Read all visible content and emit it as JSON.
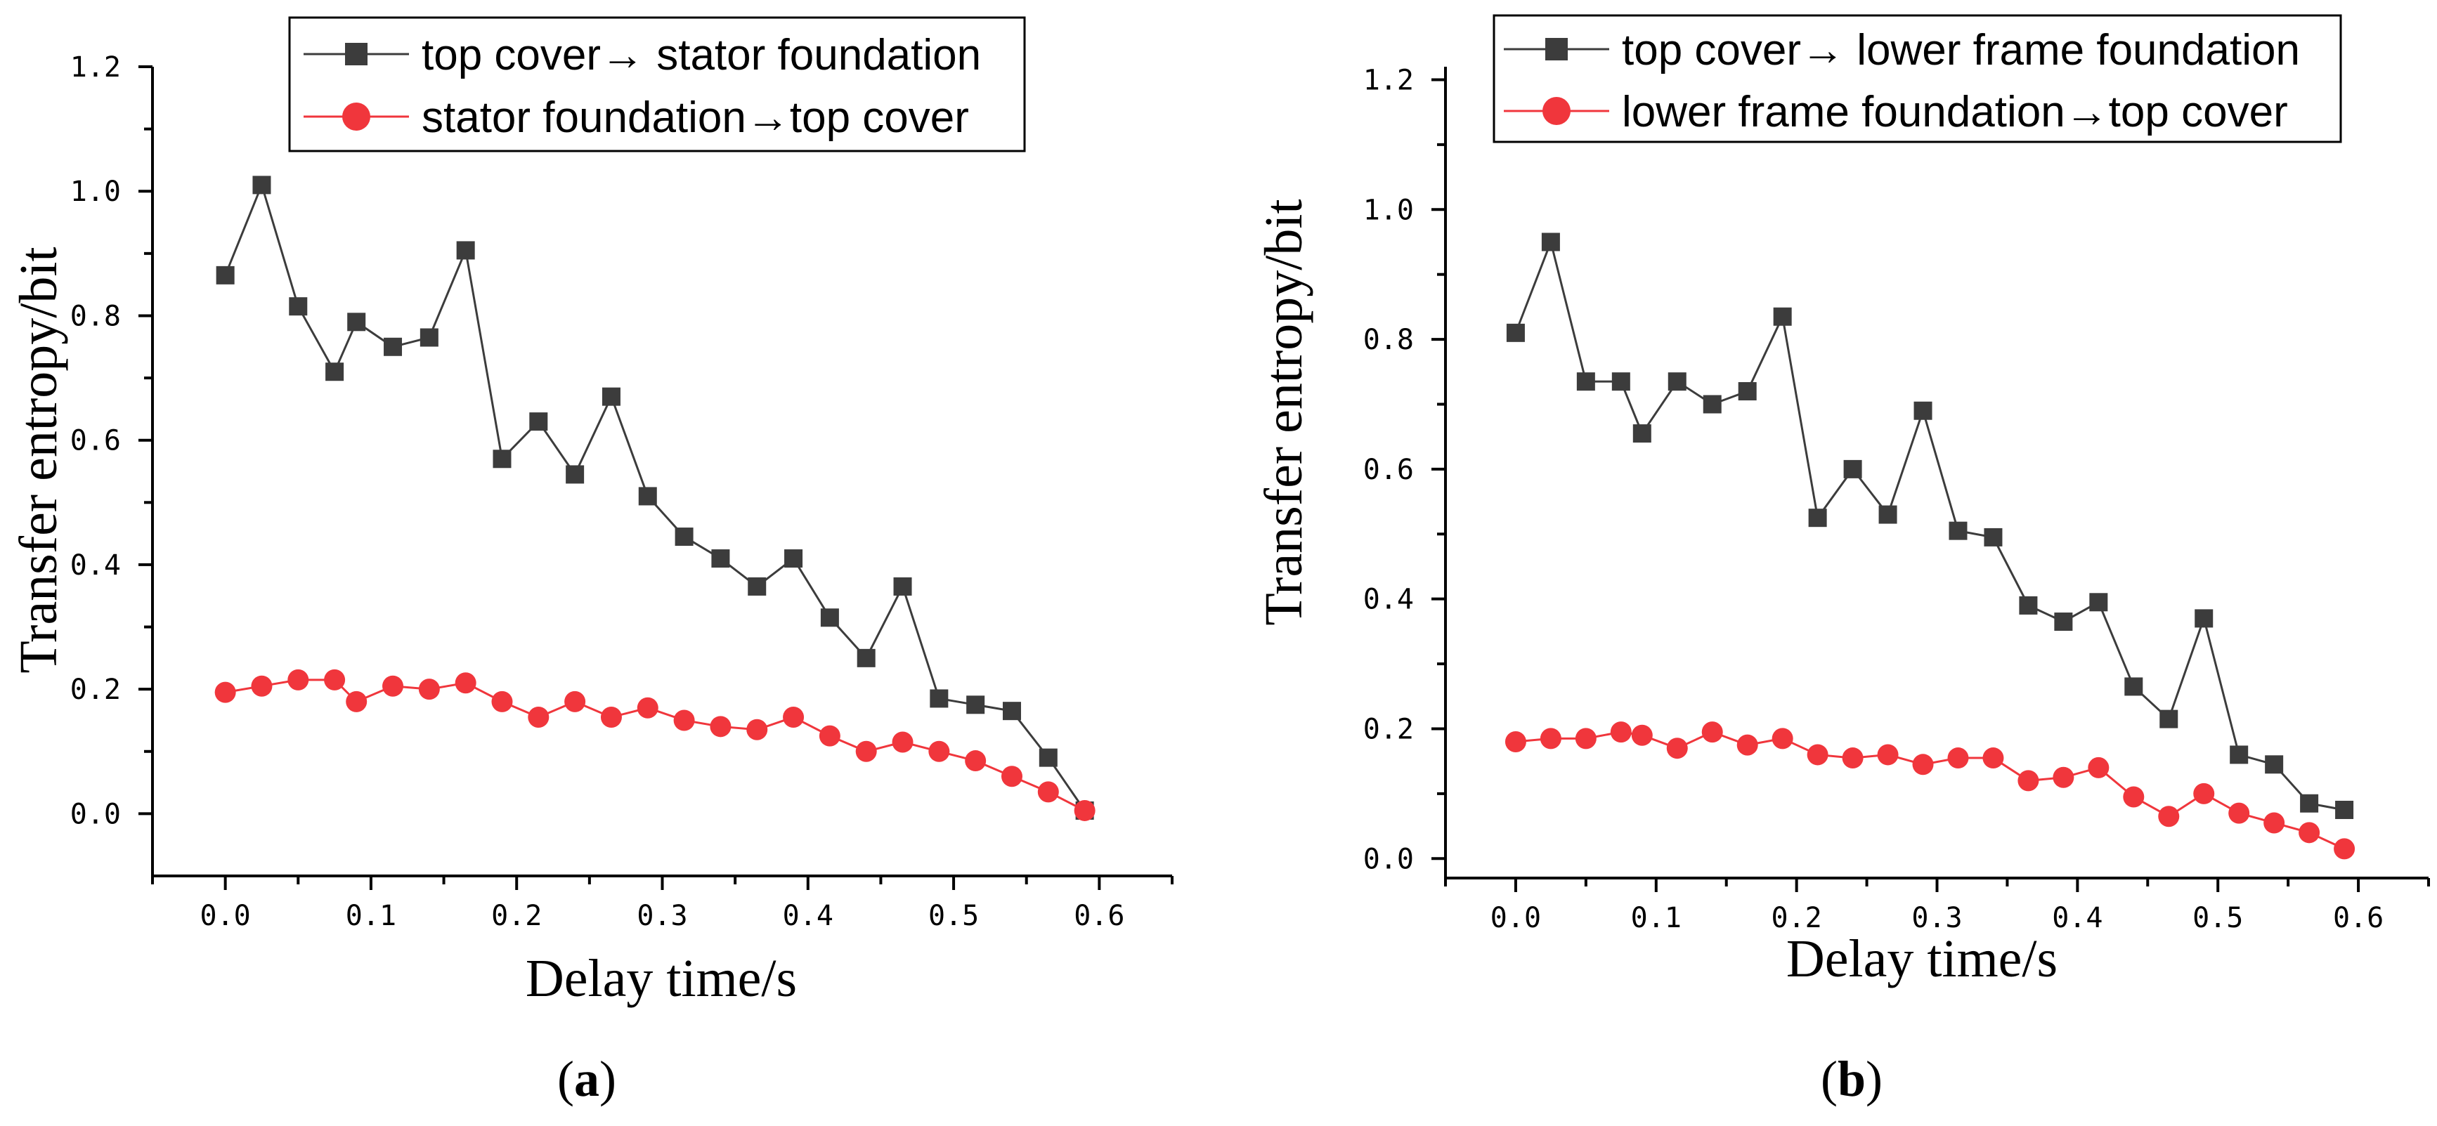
{
  "chart_data": [
    {
      "type": "line",
      "panel_label": "a",
      "xlabel": "Delay time/s",
      "ylabel": "Transfer entropy/bit",
      "xlim": [
        -0.05,
        0.65
      ],
      "ylim": [
        -0.1,
        1.2
      ],
      "x_ticks": [
        "0.0",
        "0.1",
        "0.2",
        "0.3",
        "0.4",
        "0.5",
        "0.6"
      ],
      "y_ticks": [
        "0.0",
        "0.2",
        "0.4",
        "0.6",
        "0.8",
        "1.0",
        "1.2"
      ],
      "legend_position": "top-right",
      "x": [
        0.0,
        0.025,
        0.05,
        0.075,
        0.09,
        0.115,
        0.14,
        0.165,
        0.19,
        0.215,
        0.24,
        0.265,
        0.29,
        0.315,
        0.34,
        0.365,
        0.39,
        0.415,
        0.44,
        0.465,
        0.49,
        0.515,
        0.54,
        0.565,
        0.59
      ],
      "series": [
        {
          "name": "top cover→ stator foundation",
          "color": "#3c3c3c",
          "marker": "square",
          "values": [
            0.865,
            1.01,
            0.815,
            0.71,
            0.79,
            0.75,
            0.765,
            0.905,
            0.57,
            0.63,
            0.545,
            0.67,
            0.51,
            0.445,
            0.41,
            0.365,
            0.41,
            0.315,
            0.25,
            0.365,
            0.185,
            0.175,
            0.165,
            0.09,
            0.005
          ]
        },
        {
          "name": "stator foundation→top cover",
          "color": "#f0363c",
          "marker": "circle",
          "values": [
            0.195,
            0.205,
            0.215,
            0.215,
            0.18,
            0.205,
            0.2,
            0.21,
            0.18,
            0.155,
            0.18,
            0.155,
            0.17,
            0.15,
            0.14,
            0.135,
            0.155,
            0.125,
            0.1,
            0.115,
            0.1,
            0.085,
            0.06,
            0.035,
            0.005
          ]
        }
      ]
    },
    {
      "type": "line",
      "panel_label": "b",
      "xlabel": "Delay time/s",
      "ylabel": "Transfer entropy/bit",
      "xlim": [
        -0.05,
        0.65
      ],
      "ylim": [
        -0.03,
        1.22
      ],
      "x_ticks": [
        "0.0",
        "0.1",
        "0.2",
        "0.3",
        "0.4",
        "0.5",
        "0.6"
      ],
      "y_ticks": [
        "0.0",
        "0.2",
        "0.4",
        "0.6",
        "0.8",
        "1.0",
        "1.2"
      ],
      "legend_position": "top-right",
      "x": [
        0.0,
        0.025,
        0.05,
        0.075,
        0.09,
        0.115,
        0.14,
        0.165,
        0.19,
        0.215,
        0.24,
        0.265,
        0.29,
        0.315,
        0.34,
        0.365,
        0.39,
        0.415,
        0.44,
        0.465,
        0.49,
        0.515,
        0.54,
        0.565,
        0.59
      ],
      "series": [
        {
          "name": "top cover→ lower frame foundation",
          "color": "#3c3c3c",
          "marker": "square",
          "values": [
            0.81,
            0.95,
            0.735,
            0.735,
            0.655,
            0.735,
            0.7,
            0.72,
            0.835,
            0.525,
            0.6,
            0.53,
            0.69,
            0.505,
            0.495,
            0.39,
            0.365,
            0.395,
            0.265,
            0.215,
            0.37,
            0.16,
            0.145,
            0.085,
            0.075
          ]
        },
        {
          "name": "lower frame foundation→top cover",
          "color": "#f0363c",
          "marker": "circle",
          "values": [
            0.18,
            0.185,
            0.185,
            0.195,
            0.19,
            0.17,
            0.195,
            0.175,
            0.185,
            0.16,
            0.155,
            0.16,
            0.145,
            0.155,
            0.155,
            0.12,
            0.125,
            0.14,
            0.095,
            0.065,
            0.1,
            0.07,
            0.055,
            0.04,
            0.015
          ]
        }
      ]
    }
  ]
}
